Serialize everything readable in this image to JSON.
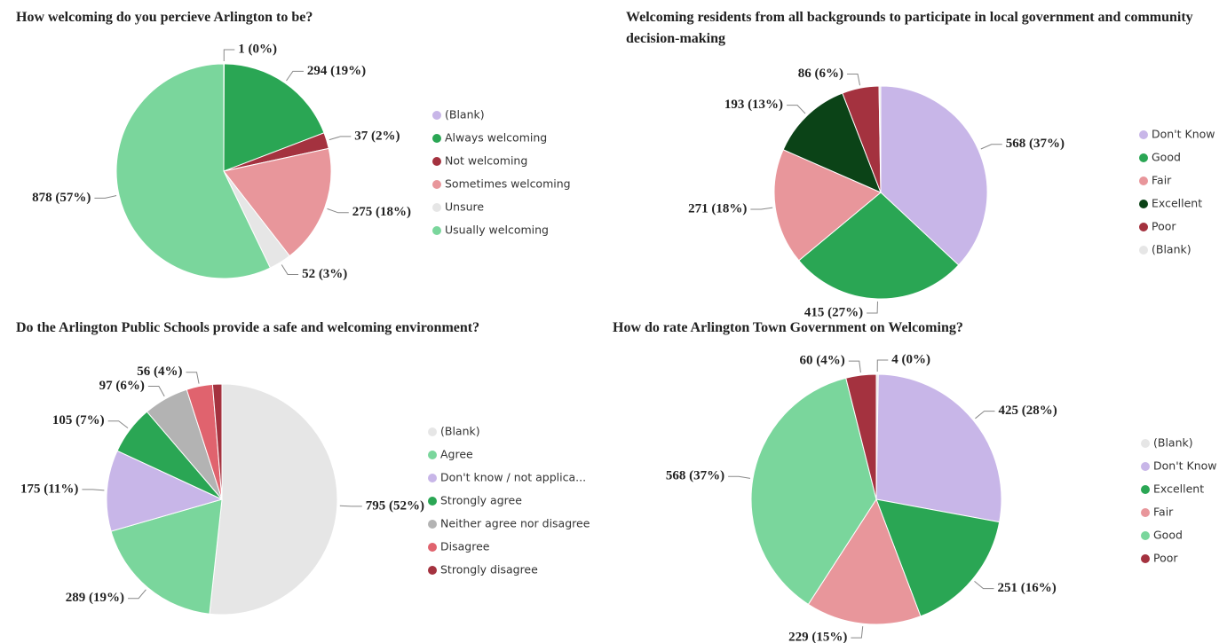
{
  "chart_data": [
    {
      "type": "pie",
      "title": "How welcoming do you percieve Arlington to be?",
      "categories": [
        "(Blank)",
        "Always welcoming",
        "Not welcoming",
        "Sometimes welcoming",
        "Unsure",
        "Usually welcoming"
      ],
      "values": [
        1,
        294,
        37,
        275,
        52,
        878
      ],
      "value_labels": [
        "1 (0%)",
        "294 (19%)",
        "37 (2%)",
        "275 (18%)",
        "52 (3%)",
        "878 (57%)"
      ],
      "colors": [
        "#c8b6e8",
        "#2aa654",
        "#a4323f",
        "#e8969b",
        "#e6e6e6",
        "#7ad69c"
      ]
    },
    {
      "type": "pie",
      "title": "Welcoming residents from all backgrounds to participate in local government and community decision-making",
      "categories": [
        "Don't Know",
        "Good",
        "Fair",
        "Excellent",
        "Poor",
        "(Blank)"
      ],
      "values": [
        568,
        415,
        271,
        193,
        86,
        4
      ],
      "value_labels": [
        "568 (37%)",
        "415 (27%)",
        "271 (18%)",
        "193 (13%)",
        "86 (6%)",
        null
      ],
      "colors": [
        "#c8b6e8",
        "#2aa654",
        "#e8969b",
        "#0b4317",
        "#a4323f",
        "#e6e6e6"
      ]
    },
    {
      "type": "pie",
      "title": "Do the Arlington Public Schools provide a safe and welcoming environment?",
      "categories": [
        "(Blank)",
        "Agree",
        "Don't know / not applica...",
        "Strongly agree",
        "Neither agree nor disagree",
        "Disagree",
        "Strongly disagree"
      ],
      "values": [
        795,
        289,
        175,
        105,
        97,
        56,
        20
      ],
      "value_labels": [
        "795 (52%)",
        "289 (19%)",
        "175 (11%)",
        "105 (7%)",
        "97 (6%)",
        "56 (4%)",
        null
      ],
      "colors": [
        "#e6e6e6",
        "#7ad69c",
        "#c8b6e8",
        "#2aa654",
        "#b3b3b3",
        "#e0636e",
        "#a4323f"
      ]
    },
    {
      "type": "pie",
      "title": "How do rate Arlington Town Government on Welcoming?",
      "categories": [
        "(Blank)",
        "Don't Know",
        "Excellent",
        "Fair",
        "Good",
        "Poor"
      ],
      "values": [
        4,
        425,
        251,
        229,
        568,
        60
      ],
      "value_labels": [
        "4 (0%)",
        "425 (28%)",
        "251 (16%)",
        "229 (15%)",
        "568 (37%)",
        "60 (4%)"
      ],
      "colors": [
        "#e6e6e6",
        "#c8b6e8",
        "#2aa654",
        "#e8969b",
        "#7ad69c",
        "#a4323f"
      ]
    }
  ]
}
